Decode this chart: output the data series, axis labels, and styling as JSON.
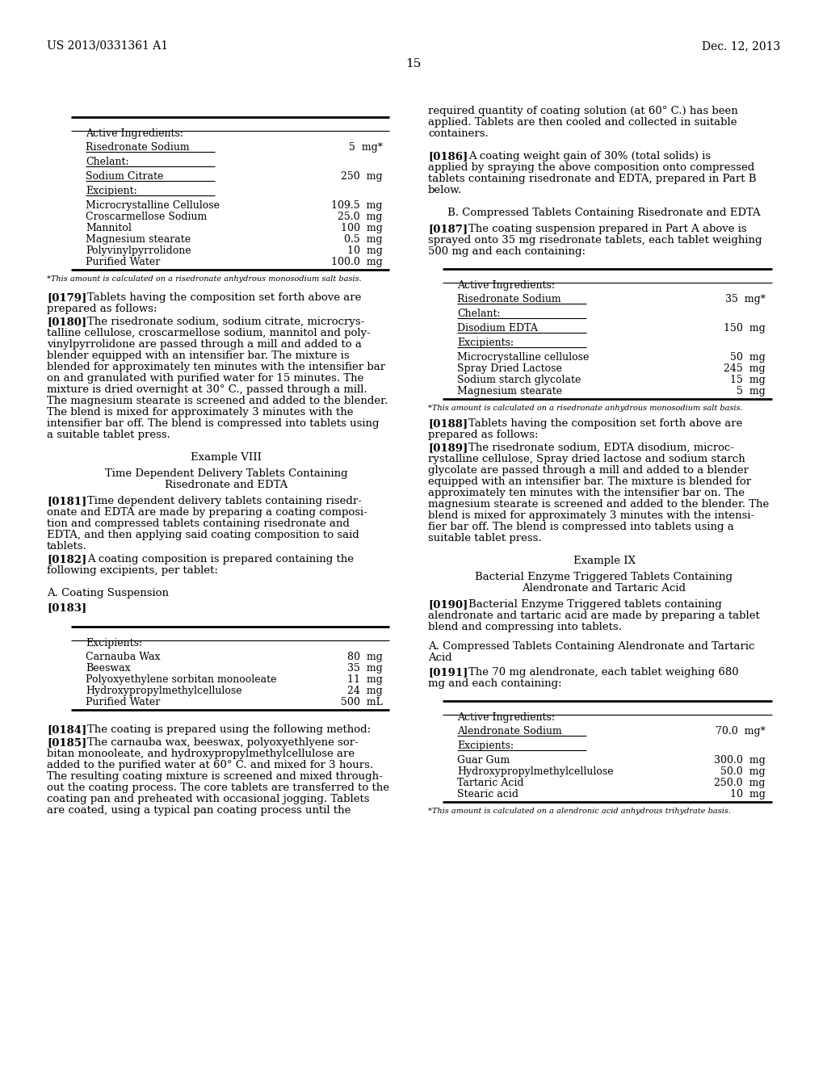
{
  "page_number": "15",
  "header_left": "US 2013/0331361 A1",
  "header_right": "Dec. 12, 2013",
  "background_color": "#ffffff",
  "table1": {
    "title": "Active Ingredients:",
    "rows": [
      {
        "name": "Risedronate Sodium",
        "amount": "5  mg*",
        "header_after": true
      },
      {
        "name": "Chelant:",
        "amount": "",
        "line_after": true
      },
      {
        "name": "Sodium Citrate",
        "amount": "250  mg",
        "header_after": true
      },
      {
        "name": "Excipient:",
        "amount": "",
        "line_after": true
      },
      {
        "name": "Microcrystalline Cellulose",
        "amount": "109.5  mg"
      },
      {
        "name": "Croscarmellose Sodium",
        "amount": "25.0  mg"
      },
      {
        "name": "Mannitol",
        "amount": "100  mg"
      },
      {
        "name": "Magnesium stearate",
        "amount": "0.5  mg"
      },
      {
        "name": "Polyvinylpyrrolidone",
        "amount": "10  mg"
      },
      {
        "name": "Purified Water",
        "amount": "100.0  mg"
      }
    ],
    "footnote": "*This amount is calculated on a risedronate anhydrous monosodium salt basis."
  },
  "table2": {
    "title": "Excipients:",
    "rows": [
      {
        "name": "Carnauba Wax",
        "amount": "80  mg"
      },
      {
        "name": "Beeswax",
        "amount": "35  mg"
      },
      {
        "name": "Polyoxyethylene sorbitan monooleate",
        "amount": "11  mg"
      },
      {
        "name": "Hydroxypropylmethylcellulose",
        "amount": "24  mg"
      },
      {
        "name": "Purified Water",
        "amount": "500  mL"
      }
    ]
  },
  "table3": {
    "title": "Active Ingredients:",
    "rows": [
      {
        "name": "Risedronate Sodium",
        "amount": "35  mg*",
        "header_after": true
      },
      {
        "name": "Chelant:",
        "amount": "",
        "line_after": true
      },
      {
        "name": "Disodium EDTA",
        "amount": "150  mg",
        "header_after": true
      },
      {
        "name": "Excipients:",
        "amount": "",
        "line_after": true
      },
      {
        "name": "Microcrystalline cellulose",
        "amount": "50  mg"
      },
      {
        "name": "Spray Dried Lactose",
        "amount": "245  mg"
      },
      {
        "name": "Sodium starch glycolate",
        "amount": "15  mg"
      },
      {
        "name": "Magnesium stearate",
        "amount": "5  mg"
      }
    ],
    "footnote": "*This amount is calculated on a risedronate anhydrous monosodium salt basis."
  },
  "table4": {
    "title": "Active Ingredients:",
    "rows": [
      {
        "name": "Alendronate Sodium",
        "amount": "70.0  mg*",
        "header_after": true
      },
      {
        "name": "Excipients:",
        "amount": "",
        "line_after": true
      },
      {
        "name": "Guar Gum",
        "amount": "300.0  mg"
      },
      {
        "name": "Hydroxypropylmethylcellulose",
        "amount": "50.0  mg"
      },
      {
        "name": "Tartaric Acid",
        "amount": "250.0  mg"
      },
      {
        "name": "Stearic acid",
        "amount": "10  mg"
      }
    ],
    "footnote": "*This amount is calculated on a alendronic acid anhydrous trihydrate basis."
  }
}
